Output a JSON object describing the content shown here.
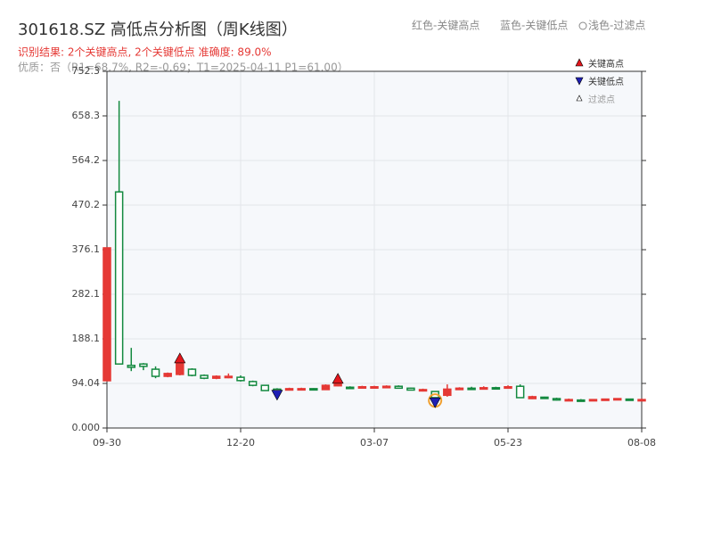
{
  "chart_data": {
    "type": "candlestick",
    "title": "301618.SZ 高低点分析图（周K线图）",
    "subtitle": "识别结果: 2个关键高点, 2个关键低点  准确度: 89.0%",
    "note": "优质：否（R1=68.7%, R2=-0.69；T1=2025-04-11 P1=61.00）",
    "top_legend": [
      "红色-关键高点",
      "蓝色-关键低点",
      "浅色-过滤点"
    ],
    "legend": [
      "关键高点",
      "关键低点",
      "过滤点"
    ],
    "categories": [
      "09-30",
      null,
      null,
      null,
      null,
      null,
      null,
      null,
      null,
      null,
      null,
      "12-20",
      null,
      null,
      null,
      null,
      null,
      null,
      null,
      null,
      null,
      null,
      "03-07",
      null,
      null,
      null,
      null,
      null,
      null,
      null,
      null,
      null,
      null,
      "05-23",
      null,
      null,
      null,
      null,
      null,
      null,
      null,
      null,
      null,
      null,
      "08-08"
    ],
    "open": [
      99.7,
      498,
      132,
      135,
      124,
      109,
      113,
      124,
      111,
      105,
      107,
      107,
      98,
      90,
      82,
      80,
      81,
      83,
      81,
      89,
      86,
      85,
      86,
      85,
      88,
      84,
      79,
      77,
      69,
      81,
      84,
      82,
      85,
      84,
      88,
      62,
      65,
      62,
      58,
      59,
      58,
      59,
      60,
      61,
      59
    ],
    "close": [
      380,
      135,
      128,
      130,
      109,
      115,
      137,
      111,
      105,
      109,
      109,
      100,
      90,
      79,
      78,
      83,
      83,
      81,
      90,
      96,
      84,
      87,
      87,
      88,
      84,
      80,
      81,
      64,
      82,
      84,
      82,
      85,
      83,
      87,
      64,
      66,
      63,
      59,
      60,
      58,
      60,
      61,
      62,
      59,
      60
    ],
    "high": [
      380,
      690,
      169,
      137,
      130,
      117,
      143,
      126,
      113,
      111,
      115,
      111,
      100,
      90,
      84,
      85,
      85,
      84,
      92,
      100,
      88,
      89,
      89,
      90,
      90,
      85,
      83,
      78,
      92,
      86,
      87,
      88,
      87,
      90,
      92,
      68,
      66,
      64,
      62,
      61,
      61,
      62,
      63,
      62,
      62
    ],
    "low": [
      99.7,
      135,
      120,
      122,
      105,
      107,
      111,
      109,
      103,
      103,
      105,
      98,
      88,
      79,
      74,
      79,
      80,
      80,
      80,
      88,
      83,
      84,
      85,
      84,
      83,
      79,
      77,
      58,
      66,
      80,
      80,
      81,
      82,
      83,
      63,
      61,
      62,
      58,
      57,
      57,
      57,
      58,
      59,
      58,
      58
    ],
    "key_highs": [
      null,
      null,
      null,
      null,
      null,
      null,
      143,
      null,
      null,
      null,
      null,
      null,
      null,
      null,
      null,
      null,
      null,
      null,
      null,
      100,
      null,
      null,
      null,
      null,
      null,
      null,
      null,
      null,
      null,
      null,
      null,
      null,
      null,
      null,
      null,
      null,
      null,
      null,
      null,
      null,
      null,
      null,
      null,
      null,
      null
    ],
    "key_lows": [
      null,
      null,
      null,
      null,
      null,
      null,
      null,
      null,
      null,
      null,
      null,
      null,
      null,
      null,
      74,
      null,
      null,
      null,
      null,
      null,
      null,
      null,
      null,
      null,
      null,
      null,
      null,
      58,
      null,
      null,
      null,
      null,
      null,
      null,
      null,
      null,
      null,
      null,
      null,
      null,
      null,
      null,
      null,
      null,
      null
    ],
    "filtered": [
      null,
      null,
      null,
      null,
      null,
      null,
      null,
      null,
      null,
      null,
      null,
      null,
      null,
      null,
      null,
      null,
      null,
      null,
      null,
      null,
      null,
      null,
      null,
      null,
      null,
      null,
      null,
      58,
      null,
      null,
      null,
      null,
      null,
      null,
      null,
      null,
      null,
      null,
      null,
      null,
      null,
      null,
      null,
      null,
      null
    ],
    "up_color": "#e53935",
    "down_color": "#13893f",
    "key_high_color": "#e3161c",
    "key_low_color": "#1f1fb4",
    "filtered_color": "#f0a030",
    "ylim": [
      0,
      752.3
    ],
    "yticks": [
      {
        "value": 0,
        "label": "0.000"
      },
      94.04,
      188.1,
      282.1,
      376.1,
      470.2,
      564.2,
      658.3,
      752.3
    ],
    "grid": true
  }
}
